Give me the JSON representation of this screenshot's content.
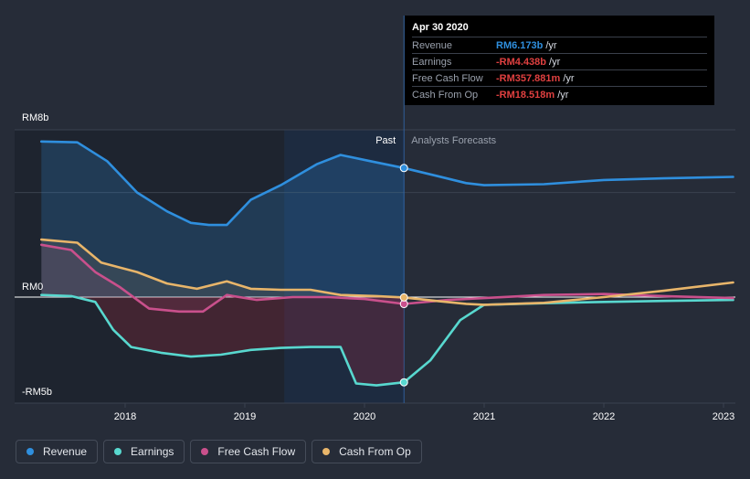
{
  "chart_data": {
    "type": "line",
    "y_axis": {
      "min": -5,
      "max": 8,
      "unit": "RM billion",
      "tick_labels": [
        "RM8b",
        "RM0",
        "-RM5b"
      ]
    },
    "x_axis": {
      "tick_labels": [
        "2018",
        "2019",
        "2020",
        "2021",
        "2022",
        "2023"
      ]
    },
    "divider": {
      "x": 2020.33,
      "past_label": "Past",
      "forecast_label": "Analysts Forecasts"
    },
    "series": [
      {
        "name": "Revenue",
        "color": "#2f8fde",
        "points": [
          [
            2017.3,
            7.44
          ],
          [
            2017.6,
            7.4
          ],
          [
            2017.85,
            6.5
          ],
          [
            2018.1,
            5.0
          ],
          [
            2018.35,
            4.1
          ],
          [
            2018.55,
            3.55
          ],
          [
            2018.7,
            3.45
          ],
          [
            2018.85,
            3.45
          ],
          [
            2019.05,
            4.65
          ],
          [
            2019.3,
            5.35
          ],
          [
            2019.6,
            6.35
          ],
          [
            2019.8,
            6.8
          ],
          [
            2020.05,
            6.5
          ],
          [
            2020.33,
            6.173
          ],
          [
            2020.6,
            5.8
          ],
          [
            2020.85,
            5.45
          ],
          [
            2021.0,
            5.35
          ],
          [
            2021.5,
            5.4
          ],
          [
            2022.0,
            5.6
          ],
          [
            2022.5,
            5.68
          ],
          [
            2023.08,
            5.75
          ]
        ]
      },
      {
        "name": "Earnings",
        "color": "#58d8cf",
        "points": [
          [
            2017.3,
            0.1
          ],
          [
            2017.55,
            0.05
          ],
          [
            2017.75,
            -0.25
          ],
          [
            2017.9,
            -1.7
          ],
          [
            2018.05,
            -2.6
          ],
          [
            2018.3,
            -2.9
          ],
          [
            2018.55,
            -3.1
          ],
          [
            2018.8,
            -3.0
          ],
          [
            2019.05,
            -2.75
          ],
          [
            2019.3,
            -2.65
          ],
          [
            2019.55,
            -2.6
          ],
          [
            2019.8,
            -2.6
          ],
          [
            2019.93,
            -4.5
          ],
          [
            2020.1,
            -4.6
          ],
          [
            2020.33,
            -4.438
          ],
          [
            2020.55,
            -3.3
          ],
          [
            2020.8,
            -1.2
          ],
          [
            2021.0,
            -0.4
          ],
          [
            2021.5,
            -0.32
          ],
          [
            2022.0,
            -0.25
          ],
          [
            2022.5,
            -0.2
          ],
          [
            2023.08,
            -0.15
          ]
        ]
      },
      {
        "name": "Free Cash Flow",
        "color": "#c9508c",
        "points": [
          [
            2017.3,
            2.5
          ],
          [
            2017.55,
            2.25
          ],
          [
            2017.75,
            1.2
          ],
          [
            2017.95,
            0.5
          ],
          [
            2018.2,
            -0.6
          ],
          [
            2018.45,
            -0.75
          ],
          [
            2018.65,
            -0.75
          ],
          [
            2018.85,
            0.1
          ],
          [
            2019.1,
            -0.15
          ],
          [
            2019.4,
            0.0
          ],
          [
            2019.7,
            0.0
          ],
          [
            2020.0,
            -0.1
          ],
          [
            2020.33,
            -0.358
          ],
          [
            2020.7,
            -0.15
          ],
          [
            2021.0,
            -0.05
          ],
          [
            2021.5,
            0.1
          ],
          [
            2022.0,
            0.15
          ],
          [
            2022.5,
            0.05
          ],
          [
            2023.08,
            -0.05
          ]
        ]
      },
      {
        "name": "Cash From Op",
        "color": "#e8b56a",
        "points": [
          [
            2017.3,
            2.75
          ],
          [
            2017.6,
            2.6
          ],
          [
            2017.8,
            1.65
          ],
          [
            2018.1,
            1.2
          ],
          [
            2018.35,
            0.65
          ],
          [
            2018.6,
            0.4
          ],
          [
            2018.85,
            0.75
          ],
          [
            2019.05,
            0.4
          ],
          [
            2019.3,
            0.35
          ],
          [
            2019.55,
            0.35
          ],
          [
            2019.8,
            0.1
          ],
          [
            2020.1,
            0.05
          ],
          [
            2020.33,
            -0.019
          ],
          [
            2020.6,
            -0.2
          ],
          [
            2020.85,
            -0.35
          ],
          [
            2021.0,
            -0.4
          ],
          [
            2021.5,
            -0.3
          ],
          [
            2022.0,
            0.0
          ],
          [
            2022.5,
            0.3
          ],
          [
            2023.08,
            0.7
          ]
        ]
      }
    ]
  },
  "tooltip": {
    "date": "Apr 30 2020",
    "rows": [
      {
        "label": "Revenue",
        "value": "RM6.173b",
        "unit": "/yr",
        "color": "#2f8fde"
      },
      {
        "label": "Earnings",
        "value": "-RM4.438b",
        "unit": "/yr",
        "color": "#e04040"
      },
      {
        "label": "Free Cash Flow",
        "value": "-RM357.881m",
        "unit": "/yr",
        "color": "#e04040"
      },
      {
        "label": "Cash From Op",
        "value": "-RM18.518m",
        "unit": "/yr",
        "color": "#e04040"
      }
    ]
  },
  "legend": [
    {
      "label": "Revenue",
      "color": "#2f8fde"
    },
    {
      "label": "Earnings",
      "color": "#58d8cf"
    },
    {
      "label": "Free Cash Flow",
      "color": "#c9508c"
    },
    {
      "label": "Cash From Op",
      "color": "#e8b56a"
    }
  ]
}
